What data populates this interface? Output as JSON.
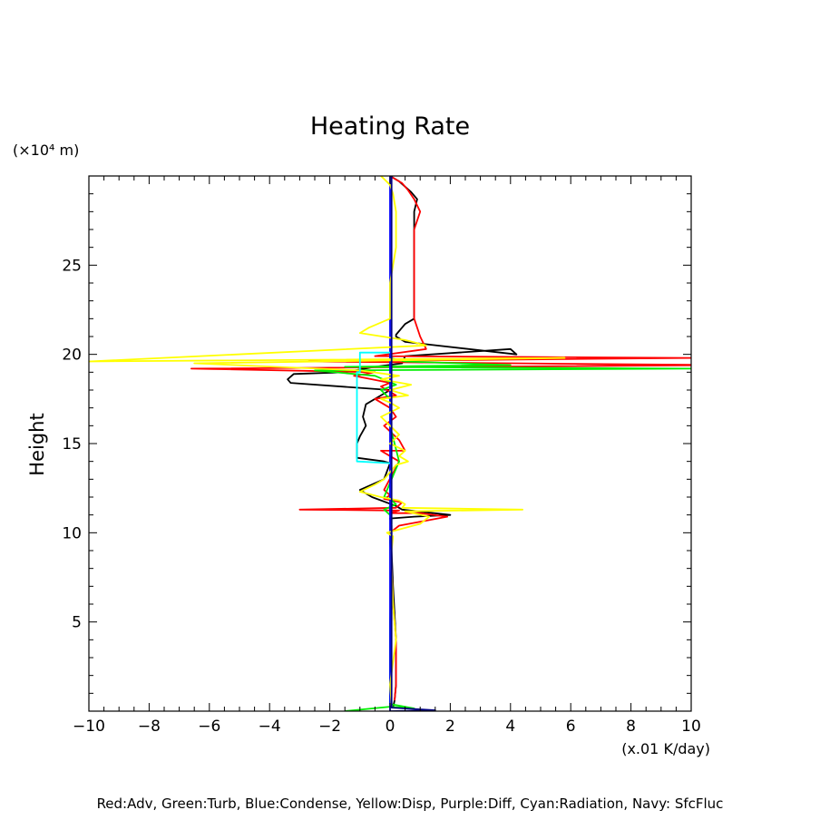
{
  "chart_data": {
    "type": "line",
    "title": "Heating Rate",
    "ylabel": "Height",
    "y_unit": "(×10⁴ m)",
    "x_unit": "(x.01 K/day)",
    "xlim": [
      -10,
      10
    ],
    "ylim": [
      0,
      30
    ],
    "x_ticks": [
      "−10",
      "−8",
      "−6",
      "−4",
      "−2",
      "0",
      "2",
      "4",
      "6",
      "8",
      "10"
    ],
    "y_ticks": [
      "5",
      "10",
      "15",
      "20",
      "25"
    ],
    "grid": false,
    "legend_text": "Red:Adv, Green:Turb, Blue:Condense, Yellow:Disp, Purple:Diff, Cyan:Radiation, Navy: SfcFluc",
    "colors": {
      "total": "#000000",
      "adv": "#ff0000",
      "turb": "#00ee00",
      "condense": "#0000ff",
      "disp": "#ffff00",
      "radiation": "#00ffff",
      "sfcfluc": "#000080"
    },
    "series": [
      {
        "color": "#000000",
        "x": [
          0.1,
          0.15,
          0.2,
          0.2,
          0.1,
          0.05,
          0.05,
          0.05,
          0.05,
          0.0,
          0.8,
          2.0,
          0.4,
          0.2,
          -0.6,
          -1.0,
          -0.2,
          0.0,
          -0.2,
          -1.1,
          -1.1,
          -1.0,
          -0.8,
          -0.9,
          -0.8,
          -0.3,
          0.0,
          -3.3,
          -3.4,
          -3.2,
          -1.5,
          -0.5,
          0.4,
          0.5,
          4.0,
          4.2,
          0.5,
          0.2,
          0.2,
          0.5,
          0.8,
          0.8,
          0.8,
          0.8,
          0.9,
          0.7,
          0.5,
          0.3,
          0.0
        ],
        "y": [
          0.2,
          0.6,
          1.5,
          4.0,
          7.0,
          9.0,
          9.6,
          10.0,
          10.4,
          10.8,
          10.9,
          11.0,
          11.3,
          11.5,
          12.0,
          12.4,
          13.0,
          13.9,
          14.0,
          14.2,
          15.0,
          15.4,
          16.0,
          16.5,
          17.2,
          17.7,
          18.0,
          18.4,
          18.6,
          18.9,
          19.0,
          19.3,
          19.5,
          19.9,
          20.3,
          20.0,
          20.7,
          21.0,
          21.1,
          21.7,
          22.0,
          24.0,
          26.0,
          28.0,
          28.7,
          29.1,
          29.4,
          29.7,
          30.0
        ]
      },
      {
        "color": "#ff0000",
        "x": [
          0.15,
          0.2,
          0.2,
          0.1,
          0.05,
          0.0,
          0.3,
          1.9,
          1.0,
          0.0,
          0.3,
          -3.0,
          0.2,
          0.4,
          -0.2,
          0.0,
          -0.2,
          0.3,
          0.0,
          -0.3,
          0.5,
          0.3,
          -0.2,
          0.2,
          0.0,
          -0.5,
          0.2,
          -0.3,
          0.0,
          -1.2,
          -0.8,
          -0.5,
          -6.6,
          11.0,
          -2.7,
          10.0,
          -0.5,
          1.2,
          1.0,
          0.8,
          0.8,
          0.8,
          0.8,
          0.8,
          1.0,
          0.8,
          0.6,
          0.4,
          0.0
        ],
        "y": [
          0.6,
          1.5,
          4.0,
          6.0,
          8.0,
          10.0,
          10.4,
          10.9,
          11.1,
          11.1,
          11.25,
          11.3,
          11.4,
          11.7,
          11.9,
          12.1,
          12.4,
          14.0,
          14.3,
          14.6,
          14.6,
          15.2,
          16.0,
          16.5,
          17.0,
          17.5,
          17.7,
          18.2,
          18.4,
          18.8,
          18.9,
          19.0,
          19.2,
          19.4,
          19.6,
          19.8,
          19.9,
          20.3,
          21.0,
          22.0,
          23.0,
          25.0,
          26.0,
          27.0,
          28.0,
          28.7,
          29.2,
          29.6,
          30.0
        ]
      },
      {
        "color": "#00ee00",
        "x": [
          -1.5,
          0.0,
          0.8,
          0.0,
          0.0,
          0.05,
          0.0,
          0.05,
          0.05,
          0.0,
          -0.2,
          0.2,
          0.0,
          -0.2,
          0.3,
          0.0,
          0.0,
          -0.3,
          0.2,
          -0.5,
          -2.5,
          10.0,
          -1.5,
          4.0,
          0.5,
          0.0
        ],
        "y": [
          0.0,
          0.25,
          0.15,
          0.4,
          5.0,
          8.0,
          9.5,
          10.5,
          10.8,
          11.0,
          11.3,
          11.6,
          11.9,
          12.0,
          14.0,
          16.0,
          17.5,
          18.0,
          18.3,
          18.8,
          19.1,
          19.2,
          19.3,
          19.4,
          19.6,
          19.8
        ]
      },
      {
        "color": "#0000ff",
        "x": [
          0.0,
          0.0
        ],
        "y": [
          0.0,
          30.0
        ]
      },
      {
        "color": "#ffff00",
        "x": [
          0.05,
          0.0,
          0.2,
          0.1,
          0.05,
          0.05,
          0.1,
          -0.1,
          1.0,
          1.3,
          0.5,
          4.4,
          0.4,
          0.5,
          0.3,
          -0.3,
          -1.0,
          -0.5,
          -0.2,
          0.0,
          0.2,
          0.6,
          0.3,
          0.5,
          0.0,
          0.3,
          0.0,
          -0.3,
          0.3,
          0.0,
          -0.3,
          0.6,
          0.0,
          0.7,
          -0.3,
          0.3,
          -1.0,
          -6.5,
          5.8,
          -10.0,
          1.2,
          0.5,
          -1.0,
          -0.7,
          0.0,
          0.0,
          0.2,
          0.2,
          0.1,
          0.0,
          -0.3
        ],
        "y": [
          0.3,
          1.5,
          4.0,
          6.0,
          8.0,
          9.0,
          9.8,
          10.0,
          10.5,
          10.9,
          11.2,
          11.3,
          11.4,
          11.6,
          11.8,
          12.0,
          12.3,
          12.7,
          13.0,
          13.4,
          13.8,
          14.0,
          14.3,
          14.6,
          15.0,
          15.5,
          16.0,
          16.5,
          17.0,
          17.3,
          17.5,
          17.7,
          18.0,
          18.3,
          18.6,
          18.8,
          19.1,
          19.5,
          19.8,
          19.6,
          20.5,
          20.8,
          21.2,
          21.5,
          22.0,
          24.0,
          26.0,
          28.0,
          29.0,
          29.5,
          30.0
        ]
      },
      {
        "color": "#00ffff",
        "x": [
          0.0,
          -1.1,
          -1.1,
          -1.0,
          -1.0,
          0.0
        ],
        "y": [
          13.9,
          14.0,
          19.0,
          19.0,
          20.1,
          20.1
        ]
      },
      {
        "color": "#000080",
        "x": [
          0.0,
          0.05,
          1.5,
          0.05,
          0.05,
          0.05
        ],
        "y": [
          0.0,
          0.0,
          0.05,
          0.2,
          10.0,
          30.0
        ]
      }
    ]
  }
}
